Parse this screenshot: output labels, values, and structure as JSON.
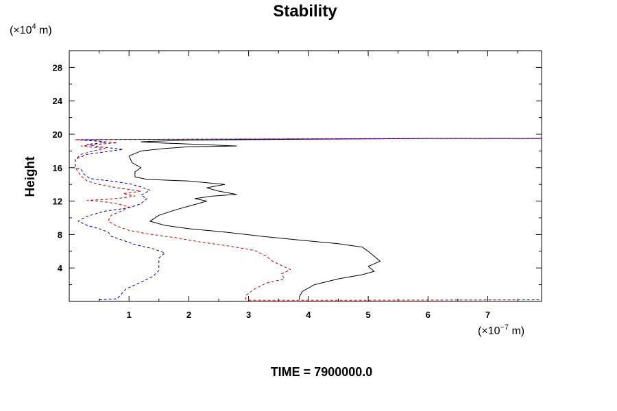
{
  "chart_data": {
    "type": "line",
    "title": "Stability",
    "ylabel": "Height",
    "y_unit": {
      "prefix": "(×10",
      "exp": "4",
      "suffix": " m)"
    },
    "x_unit": {
      "prefix": "(×10",
      "exp": "−7",
      "suffix": " m)"
    },
    "footer": "TIME = 7900000.0",
    "xlim": [
      0,
      7.9
    ],
    "ylim": [
      0,
      30
    ],
    "xticks": [
      1,
      2,
      3,
      4,
      5,
      6,
      7
    ],
    "xtick_labels": [
      "1",
      "2",
      "3",
      "4",
      "5",
      "6",
      "7"
    ],
    "yticks": [
      4,
      8,
      12,
      16,
      20,
      24,
      28
    ],
    "ytick_labels": [
      "4",
      "8",
      "12",
      "16",
      "20",
      "24",
      "28"
    ],
    "grid": false,
    "series": [
      {
        "color": "#000000",
        "dash": "solid",
        "points": [
          [
            3.85,
            0.2
          ],
          [
            3.85,
            0.6
          ],
          [
            3.9,
            1.2
          ],
          [
            4.1,
            2.0
          ],
          [
            4.5,
            2.7
          ],
          [
            4.9,
            3.2
          ],
          [
            5.1,
            3.6
          ],
          [
            5.0,
            4.2
          ],
          [
            5.2,
            4.8
          ],
          [
            5.1,
            5.4
          ],
          [
            5.0,
            6.0
          ],
          [
            4.9,
            6.5
          ],
          [
            4.5,
            6.9
          ],
          [
            3.9,
            7.3
          ],
          [
            3.2,
            7.8
          ],
          [
            2.6,
            8.3
          ],
          [
            2.0,
            8.7
          ],
          [
            1.6,
            9.1
          ],
          [
            1.35,
            9.6
          ],
          [
            1.5,
            10.3
          ],
          [
            1.8,
            11.0
          ],
          [
            2.1,
            11.6
          ],
          [
            2.3,
            12.0
          ],
          [
            2.1,
            12.3
          ],
          [
            2.4,
            12.6
          ],
          [
            2.8,
            12.8
          ],
          [
            2.5,
            13.2
          ],
          [
            2.3,
            13.6
          ],
          [
            2.6,
            14.0
          ],
          [
            2.3,
            14.2
          ],
          [
            2.0,
            14.4
          ],
          [
            1.3,
            14.6
          ],
          [
            1.1,
            14.9
          ],
          [
            1.1,
            15.5
          ],
          [
            1.2,
            16.0
          ],
          [
            1.05,
            16.6
          ],
          [
            1.0,
            17.4
          ],
          [
            1.2,
            18.0
          ],
          [
            1.6,
            18.3
          ],
          [
            2.0,
            18.5
          ],
          [
            2.8,
            18.6
          ],
          [
            2.1,
            18.8
          ],
          [
            1.4,
            19.0
          ],
          [
            1.2,
            19.1
          ],
          [
            2.0,
            19.3
          ],
          [
            3.0,
            19.35
          ],
          [
            4.0,
            19.4
          ],
          [
            5.0,
            19.45
          ],
          [
            6.0,
            19.5
          ],
          [
            7.0,
            19.5
          ],
          [
            7.9,
            19.5
          ]
        ]
      },
      {
        "color": "#cc0000",
        "dash": "dashed",
        "points": [
          [
            2.95,
            0.2
          ],
          [
            2.95,
            0.7
          ],
          [
            3.1,
            1.5
          ],
          [
            3.3,
            2.2
          ],
          [
            3.6,
            2.7
          ],
          [
            3.55,
            3.3
          ],
          [
            3.7,
            3.8
          ],
          [
            3.55,
            4.3
          ],
          [
            3.4,
            4.8
          ],
          [
            3.3,
            5.4
          ],
          [
            3.1,
            6.1
          ],
          [
            2.7,
            6.6
          ],
          [
            2.2,
            7.1
          ],
          [
            1.8,
            7.6
          ],
          [
            1.3,
            8.1
          ],
          [
            1.0,
            8.5
          ],
          [
            0.8,
            9.0
          ],
          [
            0.65,
            9.6
          ],
          [
            0.7,
            10.3
          ],
          [
            0.9,
            10.9
          ],
          [
            1.0,
            11.3
          ],
          [
            0.8,
            11.7
          ],
          [
            0.5,
            12.0
          ],
          [
            0.3,
            12.1
          ],
          [
            0.6,
            12.2
          ],
          [
            0.9,
            12.4
          ],
          [
            1.1,
            12.6
          ],
          [
            0.9,
            12.9
          ],
          [
            1.2,
            13.2
          ],
          [
            0.8,
            13.6
          ],
          [
            0.5,
            14.0
          ],
          [
            0.3,
            14.4
          ],
          [
            0.2,
            15.0
          ],
          [
            0.15,
            15.5
          ],
          [
            0.1,
            16.0
          ],
          [
            0.1,
            17.0
          ],
          [
            0.2,
            17.6
          ],
          [
            0.4,
            18.0
          ],
          [
            0.6,
            18.3
          ],
          [
            0.2,
            18.6
          ],
          [
            0.5,
            18.8
          ],
          [
            0.8,
            19.0
          ],
          [
            0.4,
            19.2
          ],
          [
            0.1,
            19.35
          ],
          [
            2.0,
            19.4
          ],
          [
            4.0,
            19.45
          ],
          [
            6.0,
            19.5
          ],
          [
            7.9,
            19.5
          ]
        ]
      },
      {
        "color": "#0000cc",
        "dash": "dashed",
        "points": [
          [
            0.5,
            0.2
          ],
          [
            0.8,
            0.3
          ],
          [
            0.85,
            0.7
          ],
          [
            0.95,
            1.5
          ],
          [
            1.2,
            2.3
          ],
          [
            1.4,
            3.0
          ],
          [
            1.5,
            3.7
          ],
          [
            1.5,
            4.5
          ],
          [
            1.5,
            5.2
          ],
          [
            1.6,
            5.8
          ],
          [
            1.4,
            6.3
          ],
          [
            1.1,
            6.8
          ],
          [
            0.9,
            7.3
          ],
          [
            0.7,
            7.8
          ],
          [
            0.65,
            8.3
          ],
          [
            0.5,
            8.7
          ],
          [
            0.3,
            9.1
          ],
          [
            0.15,
            9.6
          ],
          [
            0.3,
            10.2
          ],
          [
            0.6,
            10.8
          ],
          [
            1.0,
            11.2
          ],
          [
            1.2,
            11.7
          ],
          [
            1.3,
            12.3
          ],
          [
            1.2,
            12.7
          ],
          [
            1.35,
            13.3
          ],
          [
            1.2,
            13.7
          ],
          [
            1.0,
            14.1
          ],
          [
            0.7,
            14.4
          ],
          [
            0.35,
            14.7
          ],
          [
            0.25,
            15.2
          ],
          [
            0.2,
            15.8
          ],
          [
            0.1,
            16.0
          ],
          [
            0.1,
            17.0
          ],
          [
            0.3,
            17.6
          ],
          [
            0.7,
            18.0
          ],
          [
            0.9,
            18.2
          ],
          [
            0.5,
            18.5
          ],
          [
            0.3,
            18.8
          ],
          [
            0.6,
            19.0
          ],
          [
            0.5,
            19.2
          ],
          [
            0.2,
            19.35
          ],
          [
            2.0,
            19.4
          ],
          [
            4.0,
            19.45
          ],
          [
            6.0,
            19.5
          ],
          [
            7.9,
            19.5
          ]
        ]
      },
      {
        "color": "#cc0000",
        "dash": "dashed",
        "points": [
          [
            3.0,
            0.15
          ],
          [
            5.0,
            0.15
          ],
          [
            7.9,
            0.2
          ]
        ]
      }
    ]
  }
}
